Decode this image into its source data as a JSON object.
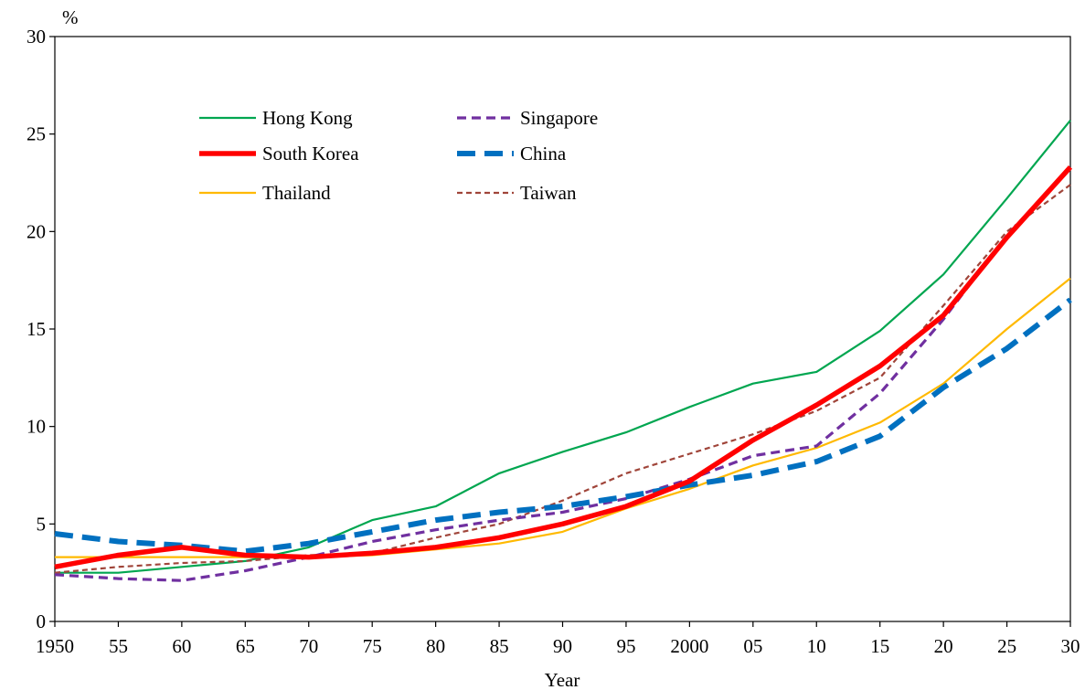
{
  "chart_data": {
    "type": "line",
    "unit_label": "%",
    "xlabel": "Year",
    "ylim": [
      0,
      30
    ],
    "y_ticks": [
      0,
      5,
      10,
      15,
      20,
      25,
      30
    ],
    "y_tick_labels": [
      "0",
      "5",
      "10",
      "15",
      "20",
      "25",
      "30"
    ],
    "xlim": [
      1950,
      2030
    ],
    "x_ticks": [
      1950,
      1955,
      1960,
      1965,
      1970,
      1975,
      1980,
      1985,
      1990,
      1995,
      2000,
      2005,
      2010,
      2015,
      2020,
      2025,
      2030
    ],
    "x_tick_labels": [
      "1950",
      "55",
      "60",
      "65",
      "70",
      "75",
      "80",
      "85",
      "90",
      "95",
      "2000",
      "05",
      "10",
      "15",
      "20",
      "25",
      "30"
    ],
    "grid": false,
    "legend_position": "top-left",
    "series": [
      {
        "name": "Hong Kong",
        "color": "#00A650",
        "style": "solid-thin",
        "x": [
          1950,
          1955,
          1960,
          1965,
          1970,
          1975,
          1980,
          1985,
          1990,
          1995,
          2000,
          2005,
          2010,
          2015,
          2020,
          2025,
          2030
        ],
        "values": [
          2.5,
          2.5,
          2.8,
          3.1,
          3.8,
          5.2,
          5.9,
          7.6,
          8.7,
          9.7,
          11.0,
          12.2,
          12.8,
          14.9,
          17.8,
          21.7,
          25.7
        ]
      },
      {
        "name": "Singapore",
        "color": "#7030A0",
        "style": "dashed-medium",
        "x": [
          1950,
          1955,
          1960,
          1965,
          1970,
          1975,
          1980,
          1985,
          1990,
          1995,
          2000,
          2005,
          2010,
          2015,
          2020,
          2025,
          2030
        ],
        "values": [
          2.4,
          2.2,
          2.1,
          2.6,
          3.3,
          4.1,
          4.7,
          5.2,
          5.6,
          6.3,
          7.3,
          8.5,
          9.0,
          11.7,
          15.5,
          19.8,
          23.3
        ]
      },
      {
        "name": "South Korea",
        "color": "#FF0000",
        "style": "solid-thick",
        "x": [
          1950,
          1955,
          1960,
          1965,
          1970,
          1975,
          1980,
          1985,
          1990,
          1995,
          2000,
          2005,
          2010,
          2015,
          2020,
          2025,
          2030
        ],
        "values": [
          2.8,
          3.4,
          3.8,
          3.4,
          3.3,
          3.5,
          3.8,
          4.3,
          5.0,
          5.9,
          7.2,
          9.3,
          11.1,
          13.1,
          15.7,
          19.7,
          23.3
        ]
      },
      {
        "name": "China",
        "color": "#0070C0",
        "style": "dashed-thick",
        "x": [
          1950,
          1955,
          1960,
          1965,
          1970,
          1975,
          1980,
          1985,
          1990,
          1995,
          2000,
          2005,
          2010,
          2015,
          2020,
          2025,
          2030
        ],
        "values": [
          4.5,
          4.1,
          3.9,
          3.6,
          4.0,
          4.6,
          5.2,
          5.6,
          5.9,
          6.4,
          7.0,
          7.5,
          8.2,
          9.5,
          12.0,
          14.0,
          16.5
        ]
      },
      {
        "name": "Thailand",
        "color": "#FFB900",
        "style": "solid-thin",
        "x": [
          1950,
          1955,
          1960,
          1965,
          1970,
          1975,
          1980,
          1985,
          1990,
          1995,
          2000,
          2005,
          2010,
          2015,
          2020,
          2025,
          2030
        ],
        "values": [
          3.3,
          3.3,
          3.3,
          3.3,
          3.3,
          3.4,
          3.7,
          4.0,
          4.6,
          5.8,
          6.8,
          8.0,
          8.9,
          10.2,
          12.2,
          15.0,
          17.6
        ]
      },
      {
        "name": "Taiwan",
        "color": "#A0453A",
        "style": "dashed-thin",
        "x": [
          1950,
          1955,
          1960,
          1965,
          1970,
          1975,
          1980,
          1985,
          1990,
          1995,
          2000,
          2005,
          2010,
          2015,
          2020,
          2025,
          2030
        ],
        "values": [
          2.5,
          2.8,
          3.0,
          3.1,
          3.4,
          3.5,
          4.3,
          5.0,
          6.2,
          7.6,
          8.6,
          9.6,
          10.8,
          12.5,
          16.2,
          20.0,
          22.4
        ]
      }
    ]
  }
}
